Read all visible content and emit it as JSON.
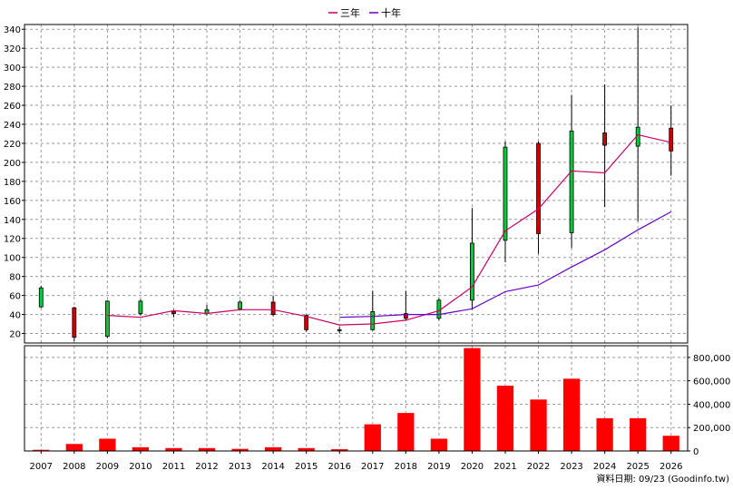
{
  "chart_data": {
    "type": "candlestick-with-volume",
    "legend": [
      {
        "name": "三年",
        "color": "#cc0066"
      },
      {
        "name": "十年",
        "color": "#6600cc"
      }
    ],
    "years": [
      "2007",
      "2008",
      "2009",
      "2010",
      "2011",
      "2012",
      "2013",
      "2014",
      "2015",
      "2016",
      "2017",
      "2018",
      "2019",
      "2020",
      "2021",
      "2022",
      "2023",
      "2024",
      "2025",
      "2026"
    ],
    "price_axis": {
      "min": 10,
      "max": 345,
      "ticks": [
        20,
        40,
        60,
        80,
        100,
        120,
        140,
        160,
        180,
        200,
        220,
        240,
        260,
        280,
        300,
        320,
        340
      ]
    },
    "volume_axis": {
      "min": 0,
      "max": 900000,
      "ticks": [
        0,
        200000,
        400000,
        600000,
        800000
      ],
      "tick_labels": [
        "0",
        "200,000",
        "400,000",
        "600,000",
        "800,000"
      ]
    },
    "candles": [
      {
        "year": "2007",
        "open": 48,
        "close": 68,
        "high": 70,
        "low": 47
      },
      {
        "year": "2008",
        "open": 47,
        "close": 16,
        "high": 48,
        "low": 12
      },
      {
        "year": "2009",
        "open": 17,
        "close": 54,
        "high": 55,
        "low": 15
      },
      {
        "year": "2010",
        "open": 41,
        "close": 54,
        "high": 56,
        "low": 39
      },
      {
        "year": "2011",
        "open": 43,
        "close": 41,
        "high": 45,
        "low": 37
      },
      {
        "year": "2012",
        "open": 41,
        "close": 45,
        "high": 50,
        "low": 39
      },
      {
        "year": "2013",
        "open": 46,
        "close": 53,
        "high": 55,
        "low": 44
      },
      {
        "year": "2014",
        "open": 53,
        "close": 40,
        "high": 60,
        "low": 38
      },
      {
        "year": "2015",
        "open": 39,
        "close": 24,
        "high": 40,
        "low": 22
      },
      {
        "year": "2016",
        "open": 23,
        "close": 24,
        "high": 27,
        "low": 20
      },
      {
        "year": "2017",
        "open": 24,
        "close": 43,
        "high": 65,
        "low": 23
      },
      {
        "year": "2018",
        "open": 41,
        "close": 36,
        "high": 65,
        "low": 34
      },
      {
        "year": "2019",
        "open": 36,
        "close": 55,
        "high": 57,
        "low": 34
      },
      {
        "year": "2020",
        "open": 55,
        "close": 115,
        "high": 152,
        "low": 45
      },
      {
        "year": "2021",
        "open": 118,
        "close": 216,
        "high": 222,
        "low": 95
      },
      {
        "year": "2022",
        "open": 220,
        "close": 125,
        "high": 222,
        "low": 104
      },
      {
        "year": "2023",
        "open": 126,
        "close": 233,
        "high": 271,
        "low": 110
      },
      {
        "year": "2024",
        "open": 231,
        "close": 218,
        "high": 282,
        "low": 153
      },
      {
        "year": "2025",
        "open": 217,
        "close": 237,
        "high": 342,
        "low": 138
      },
      {
        "year": "2026",
        "open": 236,
        "close": 212,
        "high": 260,
        "low": 186
      }
    ],
    "series": [
      {
        "name": "三年",
        "color": "#cc0066",
        "x": [
          "2009",
          "2010",
          "2011",
          "2012",
          "2013",
          "2014",
          "2015",
          "2016",
          "2017",
          "2018",
          "2019",
          "2020",
          "2021",
          "2022",
          "2023",
          "2024",
          "2025",
          "2026"
        ],
        "values": [
          39,
          37,
          44,
          41,
          45,
          45,
          38,
          29,
          30,
          34,
          44,
          69,
          128,
          151,
          191,
          189,
          229,
          221
        ]
      },
      {
        "name": "十年",
        "color": "#6600cc",
        "x": [
          "2016",
          "2017",
          "2018",
          "2019",
          "2020",
          "2021",
          "2022",
          "2023",
          "2024",
          "2025",
          "2026"
        ],
        "values": [
          37,
          38,
          40,
          40,
          46,
          64,
          71,
          90,
          108,
          129,
          148
        ]
      }
    ],
    "volume": [
      {
        "year": "2007",
        "value": 10000
      },
      {
        "year": "2008",
        "value": 60000
      },
      {
        "year": "2009",
        "value": 105000
      },
      {
        "year": "2010",
        "value": 32000
      },
      {
        "year": "2011",
        "value": 25000
      },
      {
        "year": "2012",
        "value": 25000
      },
      {
        "year": "2013",
        "value": 18000
      },
      {
        "year": "2014",
        "value": 32000
      },
      {
        "year": "2015",
        "value": 25000
      },
      {
        "year": "2016",
        "value": 15000
      },
      {
        "year": "2017",
        "value": 228000
      },
      {
        "year": "2018",
        "value": 325000
      },
      {
        "year": "2019",
        "value": 105000
      },
      {
        "year": "2020",
        "value": 880000
      },
      {
        "year": "2021",
        "value": 558000
      },
      {
        "year": "2022",
        "value": 440000
      },
      {
        "year": "2023",
        "value": 618000
      },
      {
        "year": "2024",
        "value": 280000
      },
      {
        "year": "2025",
        "value": 280000
      },
      {
        "year": "2026",
        "value": 130000
      }
    ],
    "colors": {
      "up_candle": "#00cc33",
      "down_candle": "#cc0000",
      "wick": "#000000",
      "volume_bar": "#ff0000"
    },
    "grid": true,
    "legend_position": "top-center"
  },
  "footer_note": "資料日期: 09/23  (Goodinfo.tw)"
}
